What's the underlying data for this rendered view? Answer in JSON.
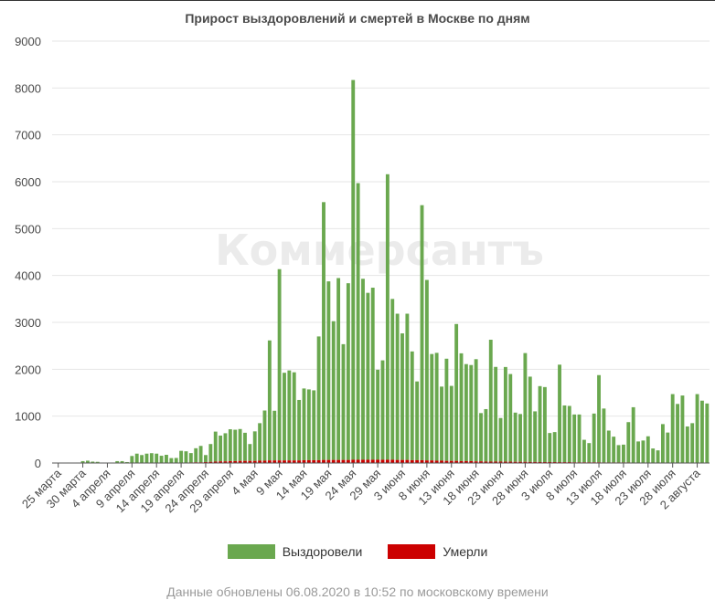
{
  "watermark": "Коммерсантъ",
  "footer": "Данные обновлены 06.08.2020 в 10:52 по московскому времени",
  "colors": {
    "recovered": "#6aa84f",
    "died": "#cc0000",
    "grid": "#e6e6e6",
    "axis": "#555555"
  },
  "chart_data": {
    "type": "bar",
    "stacked": true,
    "title": "Прирост выздоровлений и смертей в Москве по дням",
    "xlabel": "",
    "ylabel": "",
    "ylim": [
      0,
      9000
    ],
    "y_ticks": [
      0,
      1000,
      2000,
      3000,
      4000,
      5000,
      6000,
      7000,
      8000,
      9000
    ],
    "grid": true,
    "legend_position": "bottom",
    "x_start_label": "25 марта",
    "x_tick_labels": [
      "25 марта",
      "30 марта",
      "4 апреля",
      "9 апреля",
      "14 апреля",
      "19 апреля",
      "24 апреля",
      "29 апреля",
      "4 мая",
      "9 мая",
      "14 мая",
      "19 мая",
      "24 мая",
      "29 мая",
      "3 июня",
      "8 июня",
      "13 июня",
      "18 июня",
      "23 июня",
      "28 июня",
      "3 июля",
      "8 июля",
      "13 июля",
      "18 июля",
      "23 июля",
      "28 июля",
      "2 августа"
    ],
    "series": [
      {
        "name": "Выздоровели",
        "color": "#6aa84f",
        "values": [
          5,
          0,
          10,
          5,
          10,
          40,
          50,
          30,
          25,
          10,
          10,
          10,
          40,
          40,
          20,
          150,
          200,
          170,
          200,
          210,
          200,
          150,
          170,
          100,
          100,
          250,
          240,
          200,
          300,
          350,
          150,
          380,
          640,
          550,
          600,
          680,
          670,
          680,
          600,
          360,
          630,
          800,
          1070,
          2560,
          1060,
          4080,
          1870,
          1920,
          1880,
          1290,
          1530,
          1510,
          1490,
          2640,
          5500,
          3810,
          2960,
          3880,
          2470,
          3770,
          8100,
          5900,
          3860,
          3560,
          3670,
          1920,
          2120,
          6090,
          3430,
          3120,
          2700,
          3120,
          2320,
          1680,
          5440,
          3850,
          2270,
          2300,
          1580,
          2180,
          1600,
          2920,
          2300,
          2070,
          2050,
          2180,
          1030,
          1120,
          2600,
          2020,
          930,
          2020,
          1870,
          1050,
          1020,
          2320,
          1820,
          1080,
          1620,
          1600,
          620,
          640,
          2080,
          1210,
          1200,
          1020,
          1020,
          480,
          410,
          1040,
          1860,
          1150,
          680,
          550,
          370,
          380,
          860,
          1180,
          450,
          470,
          560,
          300,
          260,
          820,
          640,
          1460,
          1250,
          1430,
          770,
          840,
          1460,
          1320,
          1260
        ]
      },
      {
        "name": "Умерли",
        "color": "#cc0000",
        "values": [
          0,
          0,
          0,
          0,
          0,
          0,
          0,
          0,
          0,
          0,
          0,
          0,
          0,
          0,
          0,
          0,
          0,
          0,
          0,
          0,
          0,
          5,
          5,
          5,
          8,
          10,
          10,
          12,
          15,
          15,
          20,
          25,
          30,
          35,
          35,
          40,
          40,
          45,
          45,
          45,
          45,
          50,
          50,
          55,
          55,
          55,
          55,
          55,
          55,
          55,
          60,
          60,
          60,
          60,
          65,
          65,
          65,
          65,
          65,
          65,
          70,
          70,
          70,
          70,
          70,
          70,
          70,
          70,
          70,
          65,
          65,
          65,
          60,
          60,
          60,
          55,
          55,
          50,
          50,
          45,
          45,
          45,
          40,
          40,
          40,
          35,
          35,
          30,
          30,
          30,
          30,
          28,
          28,
          25,
          25,
          25,
          22,
          22,
          20,
          20,
          20,
          20,
          18,
          18,
          18,
          15,
          15,
          15,
          15,
          15,
          15,
          12,
          12,
          12,
          12,
          12,
          12,
          10,
          10,
          10,
          10,
          10,
          10,
          10,
          10,
          10,
          10,
          10,
          10,
          10,
          10,
          10,
          10
        ]
      }
    ]
  }
}
